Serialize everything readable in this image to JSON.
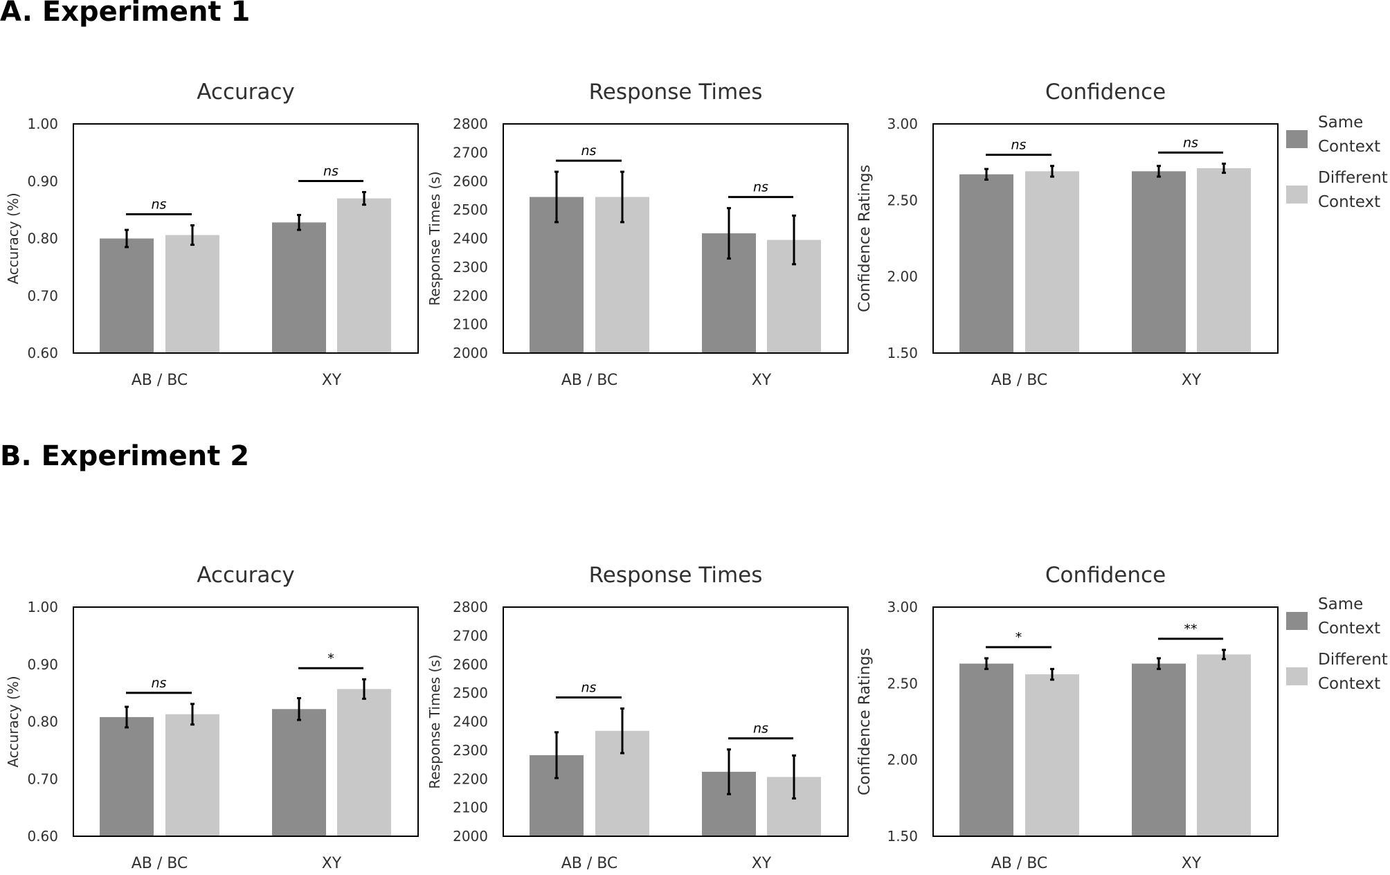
{
  "colors": {
    "same": "#8c8c8c",
    "different": "#c8c8c8",
    "axis": "#000000",
    "text": "#303030"
  },
  "sections": [
    {
      "heading": "A. Experiment 1"
    },
    {
      "heading": "B. Experiment 2"
    }
  ],
  "legend": {
    "items": [
      {
        "lines": [
          "Same",
          "Context"
        ],
        "color_key": "same"
      },
      {
        "lines": [
          "Different",
          "Context"
        ],
        "color_key": "different"
      }
    ]
  },
  "chart_data": [
    {
      "type": "bar",
      "experiment": "Experiment 1",
      "title": "Accuracy",
      "ylabel": "Accuracy (%)",
      "ylim": [
        0.6,
        1.0
      ],
      "yticks": [
        "0.60",
        "0.70",
        "0.80",
        "0.90",
        "1.00"
      ],
      "categories": [
        "AB / BC",
        "XY"
      ],
      "series": [
        {
          "name": "Same Context",
          "values": [
            0.8,
            0.828
          ],
          "errors": [
            0.015,
            0.013
          ]
        },
        {
          "name": "Different Context",
          "values": [
            0.806,
            0.87
          ],
          "errors": [
            0.017,
            0.011
          ]
        }
      ],
      "annotations": [
        "ns",
        "ns"
      ]
    },
    {
      "type": "bar",
      "experiment": "Experiment 1",
      "title": "Response Times",
      "ylabel": "Response Times (s)",
      "ylim": [
        2000,
        2800
      ],
      "yticks": [
        "2000",
        "2100",
        "2200",
        "2300",
        "2400",
        "2500",
        "2600",
        "2700",
        "2800"
      ],
      "categories": [
        "AB / BC",
        "XY"
      ],
      "series": [
        {
          "name": "Same Context",
          "values": [
            2545,
            2418
          ],
          "errors": [
            88,
            88
          ]
        },
        {
          "name": "Different Context",
          "values": [
            2545,
            2395
          ],
          "errors": [
            88,
            85
          ]
        }
      ],
      "annotations": [
        "ns",
        "ns"
      ]
    },
    {
      "type": "bar",
      "experiment": "Experiment 1",
      "title": "Confidence",
      "ylabel": "Confidence Ratings",
      "ylim": [
        1.5,
        3.0
      ],
      "yticks": [
        "1.50",
        "2.00",
        "2.50",
        "3.00"
      ],
      "categories": [
        "AB / BC",
        "XY"
      ],
      "series": [
        {
          "name": "Same Context",
          "values": [
            2.67,
            2.69
          ],
          "errors": [
            0.035,
            0.035
          ]
        },
        {
          "name": "Different Context",
          "values": [
            2.69,
            2.71
          ],
          "errors": [
            0.035,
            0.03
          ]
        }
      ],
      "annotations": [
        "ns",
        "ns"
      ]
    },
    {
      "type": "bar",
      "experiment": "Experiment 2",
      "title": "Accuracy",
      "ylabel": "Accuracy (%)",
      "ylim": [
        0.6,
        1.0
      ],
      "yticks": [
        "0.60",
        "0.70",
        "0.80",
        "0.90",
        "1.00"
      ],
      "categories": [
        "AB / BC",
        "XY"
      ],
      "series": [
        {
          "name": "Same Context",
          "values": [
            0.808,
            0.822
          ],
          "errors": [
            0.018,
            0.019
          ]
        },
        {
          "name": "Different Context",
          "values": [
            0.813,
            0.857
          ],
          "errors": [
            0.018,
            0.017
          ]
        }
      ],
      "annotations": [
        "ns",
        "*"
      ]
    },
    {
      "type": "bar",
      "experiment": "Experiment 2",
      "title": "Response Times",
      "ylabel": "Response Times (s)",
      "ylim": [
        2000,
        2800
      ],
      "yticks": [
        "2000",
        "2100",
        "2200",
        "2300",
        "2400",
        "2500",
        "2600",
        "2700",
        "2800"
      ],
      "categories": [
        "AB / BC",
        "XY"
      ],
      "series": [
        {
          "name": "Same Context",
          "values": [
            2283,
            2225
          ],
          "errors": [
            80,
            78
          ]
        },
        {
          "name": "Different Context",
          "values": [
            2368,
            2207
          ],
          "errors": [
            78,
            75
          ]
        }
      ],
      "annotations": [
        "ns",
        "ns"
      ]
    },
    {
      "type": "bar",
      "experiment": "Experiment 2",
      "title": "Confidence",
      "ylabel": "Confidence Ratings",
      "ylim": [
        1.5,
        3.0
      ],
      "yticks": [
        "1.50",
        "2.00",
        "2.50",
        "3.00"
      ],
      "categories": [
        "AB / BC",
        "XY"
      ],
      "series": [
        {
          "name": "Same Context",
          "values": [
            2.63,
            2.63
          ],
          "errors": [
            0.035,
            0.035
          ]
        },
        {
          "name": "Different Context",
          "values": [
            2.56,
            2.69
          ],
          "errors": [
            0.035,
            0.03
          ]
        }
      ],
      "annotations": [
        "*",
        "**"
      ]
    }
  ]
}
